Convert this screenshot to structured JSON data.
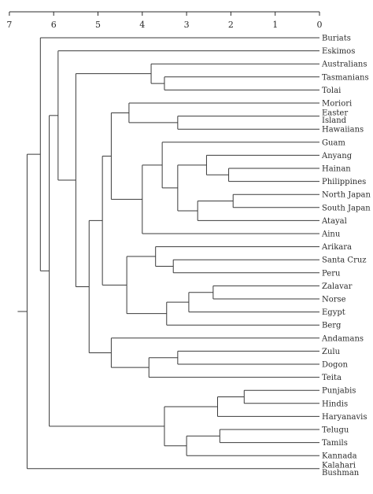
{
  "axis": {
    "ticks": [
      "7",
      "6",
      "5",
      "4",
      "3",
      "2",
      "1",
      "0"
    ]
  },
  "leaves": [
    {
      "id": "buriats",
      "lines": [
        "Buriats"
      ]
    },
    {
      "id": "eskimos",
      "lines": [
        "Eskimos"
      ]
    },
    {
      "id": "australians",
      "lines": [
        "Australians"
      ]
    },
    {
      "id": "tasmanians",
      "lines": [
        "Tasmanians"
      ]
    },
    {
      "id": "tolai",
      "lines": [
        "Tolai"
      ]
    },
    {
      "id": "moriori",
      "lines": [
        "Moriori"
      ]
    },
    {
      "id": "easter-island",
      "lines": [
        "Easter",
        "Island"
      ]
    },
    {
      "id": "hawaiians",
      "lines": [
        "Hawaiians"
      ]
    },
    {
      "id": "guam",
      "lines": [
        "Guam"
      ]
    },
    {
      "id": "anyang",
      "lines": [
        "Anyang"
      ]
    },
    {
      "id": "hainan",
      "lines": [
        "Hainan"
      ]
    },
    {
      "id": "philippines",
      "lines": [
        "Philippines"
      ]
    },
    {
      "id": "north-japan",
      "lines": [
        "North Japan"
      ]
    },
    {
      "id": "south-japan",
      "lines": [
        "South Japan"
      ]
    },
    {
      "id": "atayal",
      "lines": [
        "Atayal"
      ]
    },
    {
      "id": "ainu",
      "lines": [
        "Ainu"
      ]
    },
    {
      "id": "arikara",
      "lines": [
        "Arikara"
      ]
    },
    {
      "id": "santa-cruz",
      "lines": [
        "Santa Cruz"
      ]
    },
    {
      "id": "peru",
      "lines": [
        "Peru"
      ]
    },
    {
      "id": "zalavar",
      "lines": [
        "Zalavar"
      ]
    },
    {
      "id": "norse",
      "lines": [
        "Norse"
      ]
    },
    {
      "id": "egypt",
      "lines": [
        "Egypt"
      ]
    },
    {
      "id": "berg",
      "lines": [
        "Berg"
      ]
    },
    {
      "id": "andamans",
      "lines": [
        "Andamans"
      ]
    },
    {
      "id": "zulu",
      "lines": [
        "Zulu"
      ]
    },
    {
      "id": "dogon",
      "lines": [
        "Dogon"
      ]
    },
    {
      "id": "teita",
      "lines": [
        "Teita"
      ]
    },
    {
      "id": "punjabis",
      "lines": [
        "Punjabis"
      ]
    },
    {
      "id": "hindis",
      "lines": [
        "Hindis"
      ]
    },
    {
      "id": "haryanavis",
      "lines": [
        "Haryanavis"
      ]
    },
    {
      "id": "telugu",
      "lines": [
        "Telugu"
      ]
    },
    {
      "id": "tamils",
      "lines": [
        "Tamils"
      ]
    },
    {
      "id": "kannada",
      "lines": [
        "Kannada"
      ]
    },
    {
      "id": "kalahari-bushman",
      "lines": [
        "Kalahari",
        "Bushman"
      ]
    }
  ],
  "tree": {
    "h": 6.6,
    "c": [
      {
        "h": 6.3,
        "c": [
          "buriats",
          {
            "h": 6.1,
            "c": [
              {
                "h": 5.9,
                "c": [
                  "eskimos",
                  {
                    "h": 5.5,
                    "c": [
                      {
                        "h": 3.8,
                        "c": [
                          "australians",
                          {
                            "h": 3.5,
                            "c": [
                              "tasmanians",
                              "tolai"
                            ]
                          }
                        ]
                      },
                      {
                        "h": 5.2,
                        "c": [
                          {
                            "h": 4.9,
                            "c": [
                              {
                                "h": 4.7,
                                "c": [
                                  {
                                    "h": 4.3,
                                    "c": [
                                      "moriori",
                                      {
                                        "h": 3.2,
                                        "c": [
                                          "easter-island",
                                          "hawaiians"
                                        ]
                                      }
                                    ]
                                  },
                                  {
                                    "h": 4.0,
                                    "c": [
                                      {
                                        "h": 3.55,
                                        "c": [
                                          "guam",
                                          {
                                            "h": 3.2,
                                            "c": [
                                              {
                                                "h": 2.55,
                                                "c": [
                                                  "anyang",
                                                  {
                                                    "h": 2.05,
                                                    "c": [
                                                      "hainan",
                                                      "philippines"
                                                    ]
                                                  }
                                                ]
                                              },
                                              {
                                                "h": 2.75,
                                                "c": [
                                                  {
                                                    "h": 1.95,
                                                    "c": [
                                                      "north-japan",
                                                      "south-japan"
                                                    ]
                                                  },
                                                  "atayal"
                                                ]
                                              }
                                            ]
                                          }
                                        ]
                                      },
                                      "ainu"
                                    ]
                                  }
                                ]
                              },
                              {
                                "h": 4.35,
                                "c": [
                                  {
                                    "h": 3.7,
                                    "c": [
                                      "arikara",
                                      {
                                        "h": 3.3,
                                        "c": [
                                          "santa-cruz",
                                          "peru"
                                        ]
                                      }
                                    ]
                                  },
                                  {
                                    "h": 3.45,
                                    "c": [
                                      {
                                        "h": 2.95,
                                        "c": [
                                          {
                                            "h": 2.4,
                                            "c": [
                                              "zalavar",
                                              "norse"
                                            ]
                                          },
                                          "egypt"
                                        ]
                                      },
                                      "berg"
                                    ]
                                  }
                                ]
                              }
                            ]
                          },
                          {
                            "h": 4.7,
                            "c": [
                              "andamans",
                              {
                                "h": 3.85,
                                "c": [
                                  {
                                    "h": 3.2,
                                    "c": [
                                      "zulu",
                                      "dogon"
                                    ]
                                  },
                                  "teita"
                                ]
                              }
                            ]
                          }
                        ]
                      }
                    ]
                  }
                ]
              },
              {
                "h": 3.5,
                "c": [
                  {
                    "h": 2.3,
                    "c": [
                      {
                        "h": 1.7,
                        "c": [
                          "punjabis",
                          "hindis"
                        ]
                      },
                      "haryanavis"
                    ]
                  },
                  {
                    "h": 3.0,
                    "c": [
                      {
                        "h": 2.25,
                        "c": [
                          "telugu",
                          "tamils"
                        ]
                      },
                      "kannada"
                    ]
                  }
                ]
              }
            ]
          }
        ]
      },
      "kalahari-bushman"
    ]
  }
}
